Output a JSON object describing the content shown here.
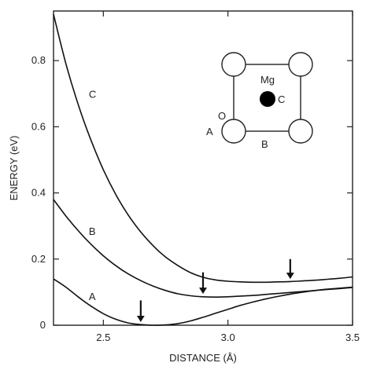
{
  "chart_data": {
    "type": "line",
    "title": "",
    "xlabel": "DISTANCE (Å)",
    "ylabel": "ENERGY (eV)",
    "xlim": [
      2.3,
      3.5
    ],
    "ylim": [
      0,
      0.95
    ],
    "x_ticks": [
      2.5,
      3.0,
      3.5
    ],
    "x_tick_labels": [
      "2.5",
      "3.0",
      "3.5"
    ],
    "y_ticks": [
      0,
      0.2,
      0.4,
      0.6,
      0.8
    ],
    "y_tick_labels": [
      "0",
      "0.2",
      "0.4",
      "0.6",
      "0.8"
    ],
    "grid": false,
    "series": [
      {
        "name": "A",
        "x": [
          2.3,
          2.35,
          2.4,
          2.45,
          2.5,
          2.55,
          2.6,
          2.65,
          2.7,
          2.75,
          2.8,
          2.85,
          2.9,
          2.95,
          3.0,
          3.05,
          3.1,
          3.15,
          3.2,
          3.25,
          3.3,
          3.35,
          3.4,
          3.45,
          3.5
        ],
        "y": [
          0.14,
          0.115,
          0.085,
          0.058,
          0.035,
          0.018,
          0.007,
          0.002,
          0.0,
          0.001,
          0.005,
          0.013,
          0.024,
          0.036,
          0.048,
          0.06,
          0.07,
          0.079,
          0.087,
          0.094,
          0.1,
          0.105,
          0.109,
          0.112,
          0.115
        ],
        "label_at": [
          2.41,
          0.088
        ]
      },
      {
        "name": "B",
        "x": [
          2.3,
          2.35,
          2.4,
          2.45,
          2.5,
          2.55,
          2.6,
          2.65,
          2.7,
          2.75,
          2.8,
          2.85,
          2.9,
          2.95,
          3.0,
          3.05,
          3.1,
          3.15,
          3.2,
          3.25,
          3.3,
          3.35,
          3.4,
          3.45,
          3.5
        ],
        "y": [
          0.38,
          0.33,
          0.285,
          0.245,
          0.21,
          0.18,
          0.155,
          0.135,
          0.118,
          0.105,
          0.095,
          0.089,
          0.086,
          0.085,
          0.086,
          0.088,
          0.09,
          0.093,
          0.096,
          0.099,
          0.102,
          0.105,
          0.108,
          0.111,
          0.114
        ],
        "label_at": [
          2.41,
          0.285
        ]
      },
      {
        "name": "C",
        "x": [
          2.3,
          2.35,
          2.4,
          2.45,
          2.5,
          2.55,
          2.6,
          2.65,
          2.7,
          2.75,
          2.8,
          2.85,
          2.9,
          2.95,
          3.0,
          3.05,
          3.1,
          3.15,
          3.2,
          3.25,
          3.3,
          3.35,
          3.4,
          3.45,
          3.5
        ],
        "y": [
          0.94,
          0.79,
          0.665,
          0.56,
          0.47,
          0.395,
          0.333,
          0.282,
          0.24,
          0.206,
          0.18,
          0.159,
          0.145,
          0.137,
          0.133,
          0.131,
          0.13,
          0.13,
          0.131,
          0.132,
          0.134,
          0.136,
          0.139,
          0.142,
          0.146
        ],
        "label_at": [
          2.41,
          0.7
        ]
      }
    ],
    "annotations": [
      {
        "type": "arrow",
        "x": 2.65,
        "y_from": 0.075,
        "y_to": 0.005
      },
      {
        "type": "arrow",
        "x": 2.9,
        "y_from": 0.16,
        "y_to": 0.09
      },
      {
        "type": "arrow",
        "x": 3.25,
        "y_from": 0.2,
        "y_to": 0.135
      }
    ],
    "inset": {
      "labels": {
        "metal": "Mg",
        "center": "C",
        "oxygen": "O",
        "site_a": "A",
        "site_b": "B"
      }
    }
  }
}
